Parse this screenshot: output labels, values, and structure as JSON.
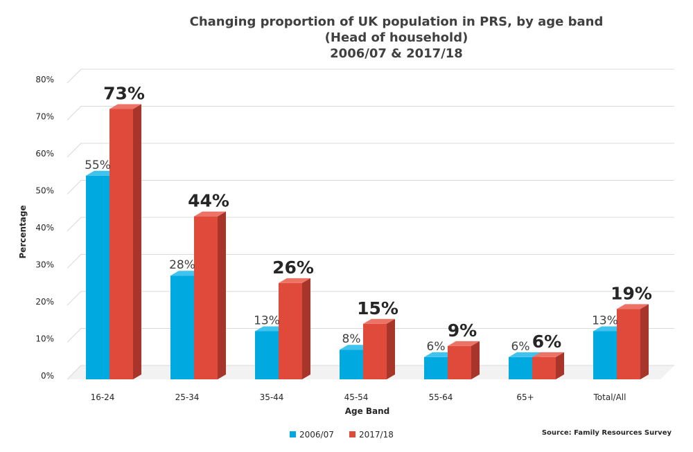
{
  "chart_data": {
    "type": "bar",
    "title_lines": [
      "Changing proportion of UK population in PRS, by age band",
      "(Head of household)",
      "2006/07 & 2017/18"
    ],
    "xlabel": "Age Band",
    "ylabel": "Percentage",
    "categories": [
      "16-24",
      "25-34",
      "35-44",
      "45-54",
      "55-64",
      "65+",
      "Total/All"
    ],
    "series": [
      {
        "name": "2006/07",
        "color": "#00a9e0",
        "side_color": "#0082ad",
        "top_color": "#40c4ee",
        "values": [
          55,
          28,
          13,
          8,
          6,
          6,
          13
        ],
        "labels": [
          "55%",
          "28%",
          "13%",
          "8%",
          "6%",
          "6%",
          "13%"
        ]
      },
      {
        "name": "2017/18",
        "color": "#e04a3a",
        "side_color": "#a8352a",
        "top_color": "#ec7366",
        "values": [
          73,
          44,
          26,
          15,
          9,
          6,
          19
        ],
        "labels": [
          "73%",
          "44%",
          "26%",
          "15%",
          "9%",
          "6%",
          "19%"
        ]
      }
    ],
    "ylim": [
      0,
      80
    ],
    "yticks": [
      0,
      10,
      20,
      30,
      40,
      50,
      60,
      70,
      80
    ],
    "ytick_labels": [
      "0%",
      "10%",
      "20%",
      "30%",
      "40%",
      "50%",
      "60%",
      "70%",
      "80%"
    ],
    "grid": true,
    "legend_position": "bottom",
    "source": "Source: Family Resources Survey"
  }
}
